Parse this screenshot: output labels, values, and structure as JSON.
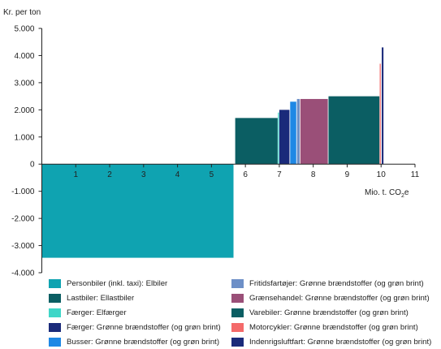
{
  "chart_data": {
    "type": "bar",
    "subtype": "marginal abatement cost curve (variable-width bars)",
    "ylabel": "Kr. per ton",
    "xlabel_main": "Mio. t. CO",
    "xlabel_sub": "2",
    "xlabel_tail": "e",
    "xlim": [
      0,
      11
    ],
    "ylim": [
      -4000,
      5000
    ],
    "x_ticks": [
      "1",
      "2",
      "3",
      "4",
      "5",
      "6",
      "7",
      "8",
      "9",
      "10",
      "11"
    ],
    "y_ticks": [
      "5.000",
      "4.000",
      "3.000",
      "2.000",
      "1.000",
      "0",
      "-1.000",
      "-2.000",
      "-3.000",
      "-4.000"
    ],
    "grid": false,
    "legend_position": "bottom",
    "series": [
      {
        "name": "Personbiler (inkl. taxi): Elbiler",
        "x_start": 0,
        "x_end": 5.65,
        "value": -3450,
        "color": "#0fa3b1"
      },
      {
        "name": "Lastbiler: Ellastbiler",
        "x_start": 5.7,
        "x_end": 6.95,
        "value": 1700,
        "color": "#0b5e63"
      },
      {
        "name": "Færger: Elfærger",
        "x_start": 6.96,
        "x_end": 6.99,
        "value": 1900,
        "color": "#3fd6c8"
      },
      {
        "name": "Færger: Grønne brændstoffer (og grøn brint)",
        "x_start": 7.0,
        "x_end": 7.3,
        "value": 2000,
        "color": "#1a2a7a"
      },
      {
        "name": "Busser: Grønne brændstoffer (og grøn brint)",
        "x_start": 7.32,
        "x_end": 7.5,
        "value": 2300,
        "color": "#1e88e5"
      },
      {
        "name": "Fritidsfartøjer: Grønne brændstoffer (og grøn brint)",
        "x_start": 7.52,
        "x_end": 7.6,
        "value": 2400,
        "color": "#6d8fc7"
      },
      {
        "name": "Grænsehandel: Grønne brændstoffer (og grøn brint)",
        "x_start": 7.62,
        "x_end": 8.43,
        "value": 2400,
        "color": "#9a4f78"
      },
      {
        "name": "Varebiler: Grønne brændstoffer (og grøn brint)",
        "x_start": 8.45,
        "x_end": 9.95,
        "value": 2500,
        "color": "#0b5e63"
      },
      {
        "name": "Motorcykler: Grønne brændstoffer (og grøn brint)",
        "x_start": 9.96,
        "x_end": 9.99,
        "value": 3700,
        "color": "#f46a6a"
      },
      {
        "name": "Indenrigsluftfart: Grønne brændstoffer (og grøn brint)",
        "x_start": 10.02,
        "x_end": 10.07,
        "value": 4300,
        "color": "#1a2a7a"
      }
    ]
  },
  "legend_left": [
    0,
    1,
    2,
    3,
    4
  ],
  "legend_right": [
    5,
    6,
    7,
    8,
    9
  ]
}
